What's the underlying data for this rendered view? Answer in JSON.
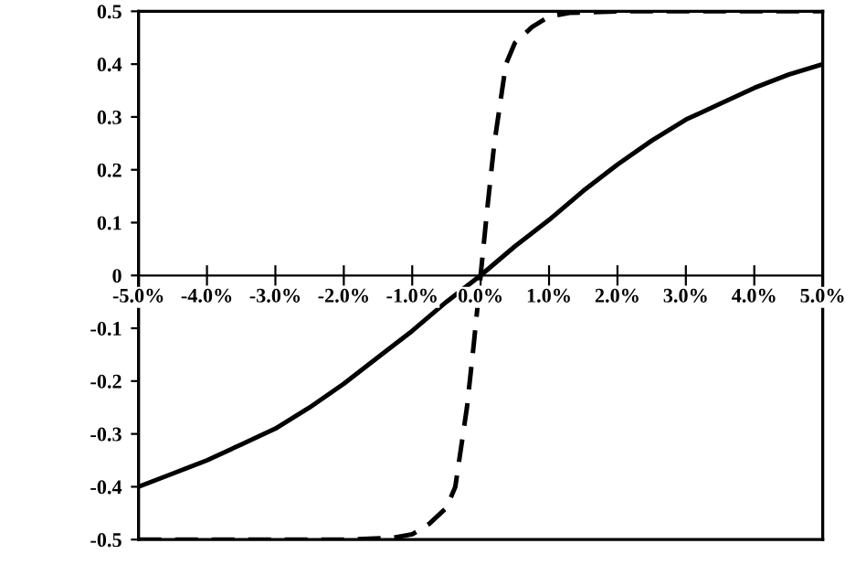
{
  "chart_data": {
    "type": "line",
    "xlim": [
      -5,
      5
    ],
    "xticks": [
      {
        "value": -5,
        "label": "-5.0%"
      },
      {
        "value": -4,
        "label": "-4.0%"
      },
      {
        "value": -3,
        "label": "-3.0%"
      },
      {
        "value": -2,
        "label": "-2.0%"
      },
      {
        "value": -1,
        "label": "-1.0%"
      },
      {
        "value": 0,
        "label": "0.0%"
      },
      {
        "value": 1,
        "label": "1.0%"
      },
      {
        "value": 2,
        "label": "2.0%"
      },
      {
        "value": 3,
        "label": "3.0%"
      },
      {
        "value": 4,
        "label": "4.0%"
      },
      {
        "value": 5,
        "label": "5.0%"
      }
    ],
    "ylim": [
      -0.5,
      0.5
    ],
    "yticks": [
      -0.5,
      -0.4,
      -0.3,
      -0.2,
      -0.1,
      0,
      0.1,
      0.2,
      0.3,
      0.4,
      0.5
    ],
    "grid": false,
    "legend": false,
    "marker": "none",
    "series": [
      {
        "color": "#000000",
        "line_style": "solid",
        "x": [
          -5,
          -4.5,
          -4,
          -3.5,
          -3,
          -2.5,
          -2,
          -1.5,
          -1,
          -0.5,
          0,
          0.5,
          1,
          1.5,
          2,
          2.5,
          3,
          3.5,
          4,
          4.5,
          5
        ],
        "values": [
          -0.4,
          -0.375,
          -0.35,
          -0.32,
          -0.29,
          -0.25,
          -0.205,
          -0.155,
          -0.105,
          -0.05,
          0.0,
          0.055,
          0.105,
          0.16,
          0.21,
          0.255,
          0.295,
          0.325,
          0.355,
          0.38,
          0.4
        ]
      },
      {
        "color": "#000000",
        "line_style": "dashed",
        "x": [
          -5,
          -2,
          -1.3,
          -1,
          -0.75,
          -0.5,
          -0.37,
          -0.2,
          -0.1,
          0,
          0.1,
          0.2,
          0.37,
          0.5,
          0.75,
          1,
          1.3,
          2,
          5
        ],
        "values": [
          -0.5,
          -0.5,
          -0.497,
          -0.49,
          -0.47,
          -0.44,
          -0.4,
          -0.25,
          -0.13,
          0,
          0.13,
          0.25,
          0.4,
          0.44,
          0.47,
          0.49,
          0.497,
          0.5,
          0.5
        ]
      }
    ]
  }
}
